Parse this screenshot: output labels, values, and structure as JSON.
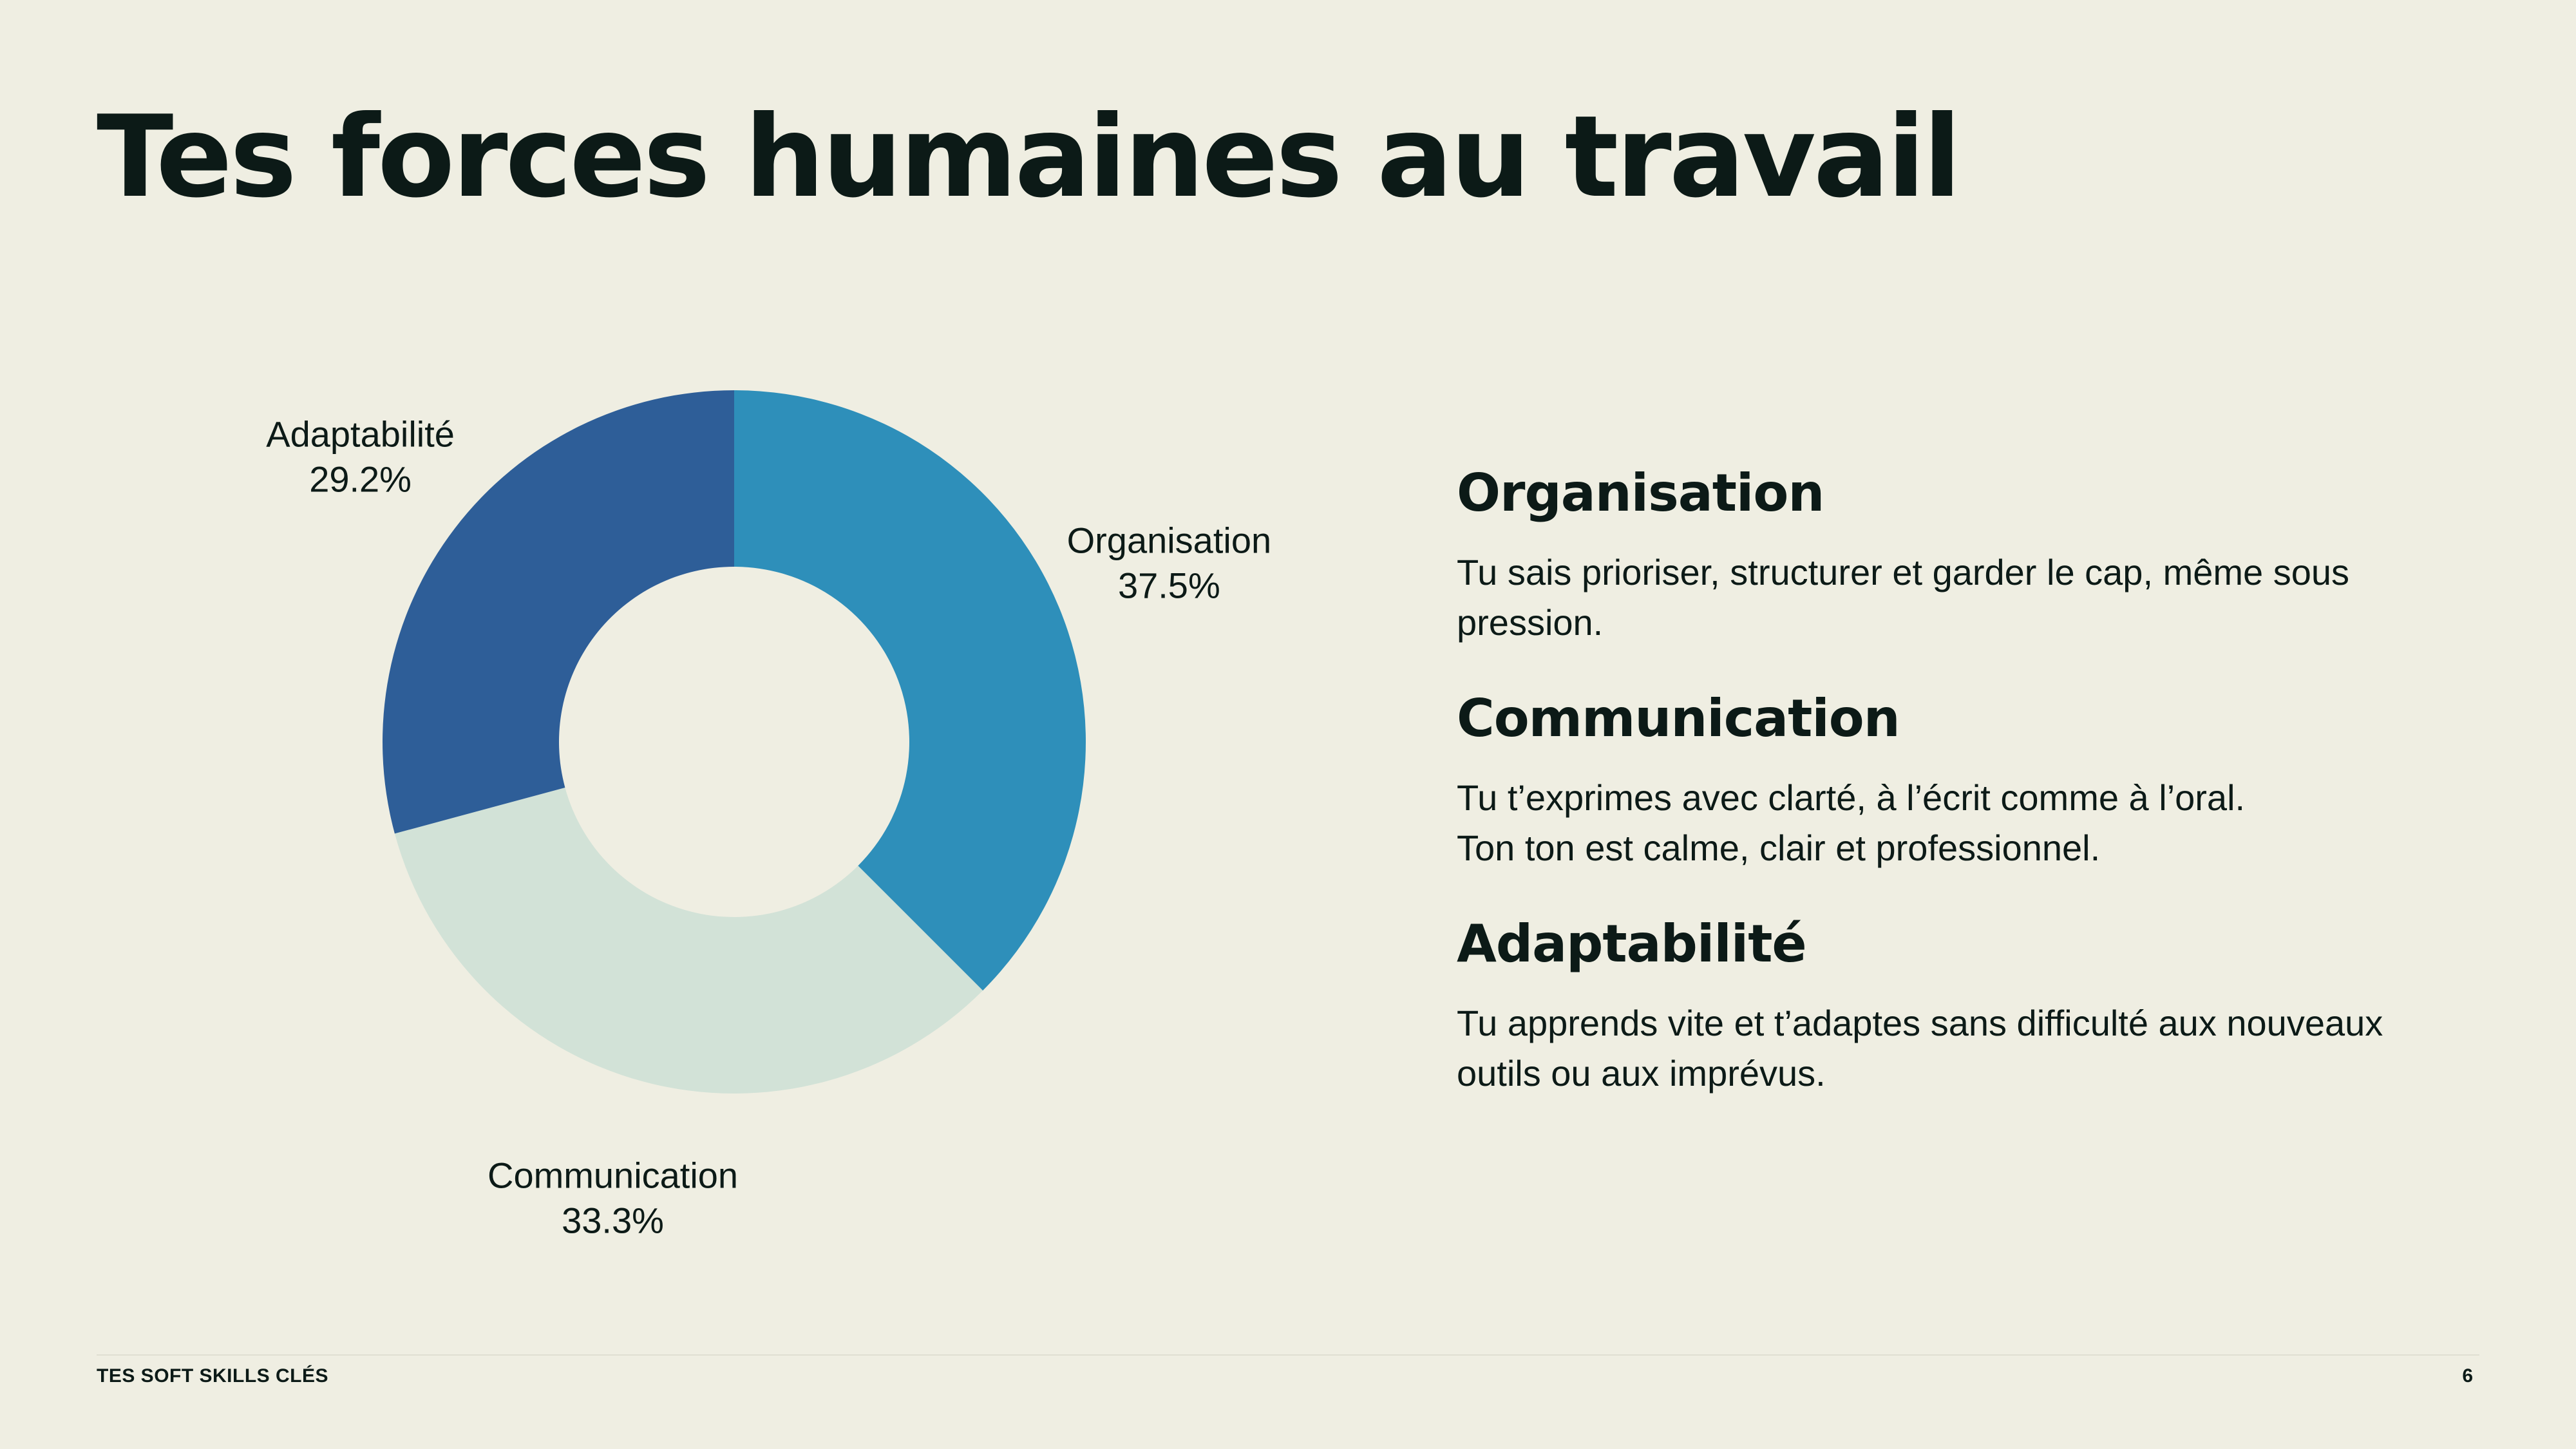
{
  "slide": {
    "title": "Tes forces humaines au travail",
    "background_color": "#efeee2",
    "text_color": "#0c1a17"
  },
  "chart_data": {
    "type": "pie",
    "variant": "donut",
    "title": "",
    "categories": [
      "Organisation",
      "Communication",
      "Adaptabilité"
    ],
    "values": [
      37.5,
      33.3,
      29.2
    ],
    "labels": [
      "37.5%",
      "33.3%",
      "29.2%"
    ],
    "colors": [
      "#2e8fba",
      "#d2e2d7",
      "#2e5e98"
    ],
    "start_angle": "12 o'clock",
    "direction": "clockwise",
    "legend": "none"
  },
  "details": [
    {
      "heading": "Organisation",
      "lines": [
        "Tu sais prioriser, structurer et garder le cap, même sous",
        "pression."
      ]
    },
    {
      "heading": "Communication",
      "lines": [
        "Tu t’exprimes avec clarté, à l’écrit comme à l’oral.",
        "Ton ton est calme, clair et professionnel."
      ]
    },
    {
      "heading": "Adaptabilité",
      "lines": [
        "Tu apprends vite et t’adaptes sans difficulté aux nouveaux",
        "outils ou aux imprévus."
      ]
    }
  ],
  "footer": {
    "section_label": "TES SOFT SKILLS CLÉS",
    "page_number": "6"
  }
}
